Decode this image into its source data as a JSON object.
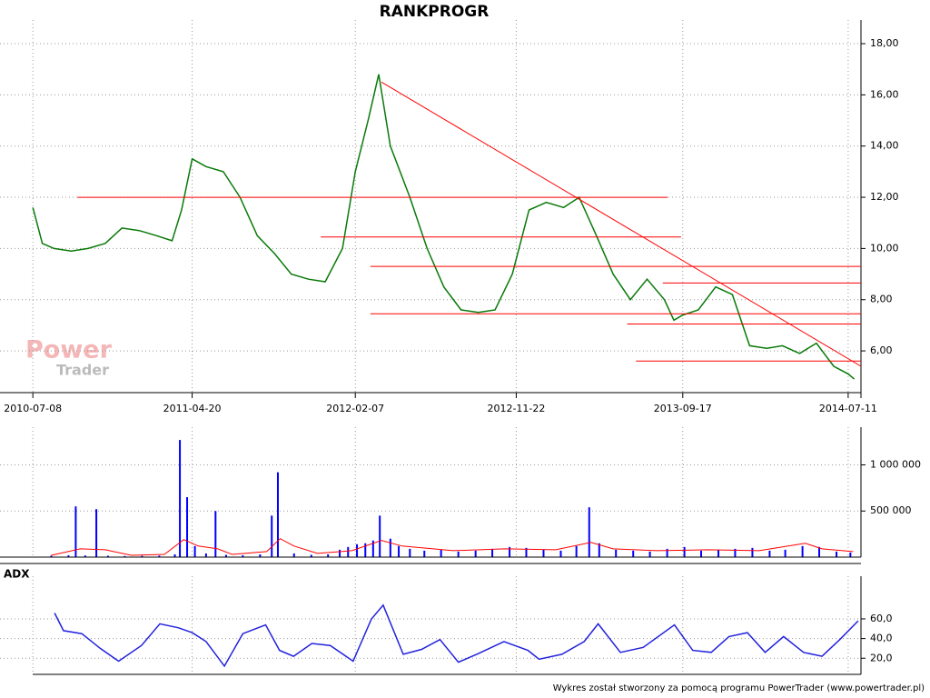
{
  "chart_data": [
    {
      "type": "line",
      "title": "RANKPROGR",
      "color": "#0a7a0a",
      "xlim": [
        "2010-05-10",
        "2014-08-03"
      ],
      "xticks": [
        "2010-07-08",
        "2011-04-20",
        "2012-02-07",
        "2012-11-22",
        "2013-09-17",
        "2014-07-11"
      ],
      "ylim": [
        4.37,
        18.64
      ],
      "yticks": [
        {
          "value": 6,
          "label": "6,00"
        },
        {
          "value": 8,
          "label": "8,00"
        },
        {
          "value": 10,
          "label": "10,00"
        },
        {
          "value": 12,
          "label": "12,00"
        },
        {
          "value": 14,
          "label": "14,00"
        },
        {
          "value": 16,
          "label": "16,00"
        },
        {
          "value": 18,
          "label": "18,00"
        }
      ],
      "grid": true,
      "x": [
        "2010-07-08",
        "2010-07-25",
        "2010-08-15",
        "2010-09-15",
        "2010-10-15",
        "2010-11-15",
        "2010-12-15",
        "2011-01-15",
        "2011-02-15",
        "2011-03-15",
        "2011-04-01",
        "2011-04-20",
        "2011-05-15",
        "2011-06-15",
        "2011-07-15",
        "2011-08-15",
        "2011-09-15",
        "2011-10-15",
        "2011-11-15",
        "2011-12-15",
        "2012-01-15",
        "2012-02-07",
        "2012-03-01",
        "2012-03-20",
        "2012-04-10",
        "2012-05-15",
        "2012-06-15",
        "2012-07-15",
        "2012-08-15",
        "2012-09-15",
        "2012-10-15",
        "2012-11-15",
        "2012-12-15",
        "2013-01-15",
        "2013-02-15",
        "2013-03-15",
        "2013-04-15",
        "2013-05-15",
        "2013-06-15",
        "2013-07-15",
        "2013-08-15",
        "2013-09-01",
        "2013-09-17",
        "2013-10-15",
        "2013-11-15",
        "2013-12-15",
        "2014-01-15",
        "2014-02-15",
        "2014-03-15",
        "2014-04-15",
        "2014-05-15",
        "2014-06-15",
        "2014-07-11",
        "2014-07-22"
      ],
      "values": [
        11.6,
        10.2,
        10.0,
        9.9,
        10.0,
        10.2,
        10.8,
        10.7,
        10.5,
        10.3,
        11.5,
        13.5,
        13.2,
        13.0,
        12.0,
        10.5,
        9.8,
        9.0,
        8.8,
        8.7,
        10.0,
        13.0,
        15.0,
        16.8,
        14.0,
        12.0,
        10.0,
        8.5,
        7.6,
        7.5,
        7.6,
        9.0,
        11.5,
        11.8,
        11.6,
        12.0,
        10.5,
        9.0,
        8.0,
        8.8,
        8.0,
        7.2,
        7.4,
        7.6,
        8.5,
        8.2,
        6.2,
        6.1,
        6.2,
        5.9,
        6.3,
        5.4,
        5.1,
        4.9
      ],
      "trend_color": "#ff0000",
      "trend_lines": [
        {
          "x": [
            "2010-09-26",
            "2013-08-21"
          ],
          "y": [
            12.0,
            12.0
          ]
        },
        {
          "x": [
            "2011-12-07",
            "2013-09-14"
          ],
          "y": [
            10.45,
            10.45
          ]
        },
        {
          "x": [
            "2012-03-05",
            "2014-08-03"
          ],
          "y": [
            9.3,
            9.3
          ]
        },
        {
          "x": [
            "2013-08-12",
            "2014-08-03"
          ],
          "y": [
            8.65,
            8.65
          ]
        },
        {
          "x": [
            "2012-03-05",
            "2014-08-03"
          ],
          "y": [
            7.45,
            7.45
          ]
        },
        {
          "x": [
            "2013-06-09",
            "2014-08-03"
          ],
          "y": [
            7.05,
            7.05
          ]
        },
        {
          "x": [
            "2013-06-25",
            "2014-08-03"
          ],
          "y": [
            5.6,
            5.6
          ]
        },
        {
          "x": [
            "2012-03-25",
            "2014-08-03"
          ],
          "y": [
            16.5,
            5.4
          ]
        }
      ]
    },
    {
      "type": "bar",
      "color": "#0000ff",
      "ma_color": "#ff0000",
      "ylim": [
        0,
        1330000
      ],
      "yticks": [
        {
          "value": 500000,
          "label": "500 000"
        },
        {
          "value": 1000000,
          "label": "1 000 000"
        }
      ],
      "grid": true,
      "x": [
        "2010-08-10",
        "2010-09-10",
        "2010-09-23",
        "2010-10-10",
        "2010-10-30",
        "2010-11-20",
        "2010-12-20",
        "2011-01-20",
        "2011-02-20",
        "2011-03-20",
        "2011-03-29",
        "2011-04-11",
        "2011-04-25",
        "2011-05-15",
        "2011-06-01",
        "2011-06-20",
        "2011-07-20",
        "2011-08-20",
        "2011-09-10",
        "2011-09-21",
        "2011-10-20",
        "2011-11-20",
        "2011-12-20",
        "2012-01-10",
        "2012-01-25",
        "2012-02-10",
        "2012-02-25",
        "2012-03-10",
        "2012-03-22",
        "2012-04-10",
        "2012-04-25",
        "2012-05-15",
        "2012-06-10",
        "2012-07-10",
        "2012-08-10",
        "2012-09-10",
        "2012-10-10",
        "2012-11-10",
        "2012-12-10",
        "2013-01-10",
        "2013-02-10",
        "2013-03-10",
        "2013-04-02",
        "2013-04-20",
        "2013-05-20",
        "2013-06-20",
        "2013-07-20",
        "2013-08-20",
        "2013-09-20",
        "2013-10-20",
        "2013-11-20",
        "2013-12-20",
        "2014-01-20",
        "2014-02-20",
        "2014-03-20",
        "2014-04-20",
        "2014-05-20",
        "2014-06-20",
        "2014-07-15"
      ],
      "values": [
        15000,
        20000,
        550000,
        18000,
        520000,
        15000,
        12000,
        14000,
        16000,
        30000,
        1270000,
        650000,
        120000,
        40000,
        500000,
        25000,
        20000,
        30000,
        450000,
        920000,
        40000,
        25000,
        30000,
        80000,
        110000,
        140000,
        150000,
        180000,
        450000,
        200000,
        120000,
        90000,
        70000,
        80000,
        60000,
        70000,
        90000,
        110000,
        100000,
        80000,
        70000,
        120000,
        540000,
        150000,
        80000,
        70000,
        60000,
        90000,
        110000,
        70000,
        80000,
        90000,
        100000,
        70000,
        80000,
        120000,
        110000,
        60000,
        50000
      ],
      "ma_x": [
        "2010-08-10",
        "2010-10-01",
        "2010-11-15",
        "2011-01-01",
        "2011-03-01",
        "2011-04-05",
        "2011-05-01",
        "2011-06-05",
        "2011-07-01",
        "2011-09-01",
        "2011-09-25",
        "2011-10-20",
        "2011-12-01",
        "2012-02-01",
        "2012-03-25",
        "2012-05-01",
        "2012-08-01",
        "2012-11-01",
        "2013-02-01",
        "2013-04-05",
        "2013-05-15",
        "2013-08-01",
        "2013-11-01",
        "2014-02-01",
        "2014-04-25",
        "2014-05-25",
        "2014-07-20"
      ],
      "ma_values": [
        20000,
        90000,
        80000,
        20000,
        30000,
        190000,
        120000,
        90000,
        30000,
        60000,
        200000,
        120000,
        40000,
        70000,
        180000,
        120000,
        70000,
        90000,
        80000,
        160000,
        90000,
        70000,
        80000,
        70000,
        150000,
        90000,
        60000
      ]
    },
    {
      "type": "line",
      "title": "ADX",
      "color": "#2222dd",
      "ylim": [
        3.6,
        96
      ],
      "yticks": [
        {
          "value": 20,
          "label": "20,0"
        },
        {
          "value": 40,
          "label": "40,0"
        },
        {
          "value": 60,
          "label": "60,0"
        }
      ],
      "grid": true,
      "x": [
        "2010-08-16",
        "2010-09-01",
        "2010-10-04",
        "2010-11-06",
        "2010-12-09",
        "2011-01-19",
        "2011-02-21",
        "2011-03-26",
        "2011-04-20",
        "2011-05-15",
        "2011-06-17",
        "2011-07-20",
        "2011-08-30",
        "2011-09-24",
        "2011-10-19",
        "2011-11-21",
        "2011-12-24",
        "2012-02-03",
        "2012-03-07",
        "2012-03-28",
        "2012-05-03",
        "2012-06-05",
        "2012-07-08",
        "2012-08-10",
        "2012-09-12",
        "2012-10-31",
        "2012-12-13",
        "2013-01-02",
        "2013-02-12",
        "2013-03-24",
        "2013-04-18",
        "2013-05-28",
        "2013-07-08",
        "2013-09-02",
        "2013-10-05",
        "2013-11-07",
        "2013-12-09",
        "2014-01-11",
        "2014-02-12",
        "2014-03-17",
        "2014-04-22",
        "2014-05-25",
        "2014-06-26",
        "2014-07-29"
      ],
      "values": [
        66,
        48,
        45,
        30,
        17,
        33,
        55,
        51,
        46,
        37,
        12,
        45,
        54,
        28,
        22,
        35,
        33,
        17,
        60,
        74,
        24,
        29,
        39,
        16,
        24,
        37,
        28,
        19,
        24,
        37,
        55,
        26,
        31,
        54,
        28,
        26,
        42,
        46,
        26,
        42,
        26,
        22,
        39,
        58
      ]
    }
  ],
  "watermark": {
    "line1": "Power",
    "line2": "Trader"
  },
  "footer": "Wykres został stworzony za pomocą programu PowerTrader (www.powertrader.pl)"
}
